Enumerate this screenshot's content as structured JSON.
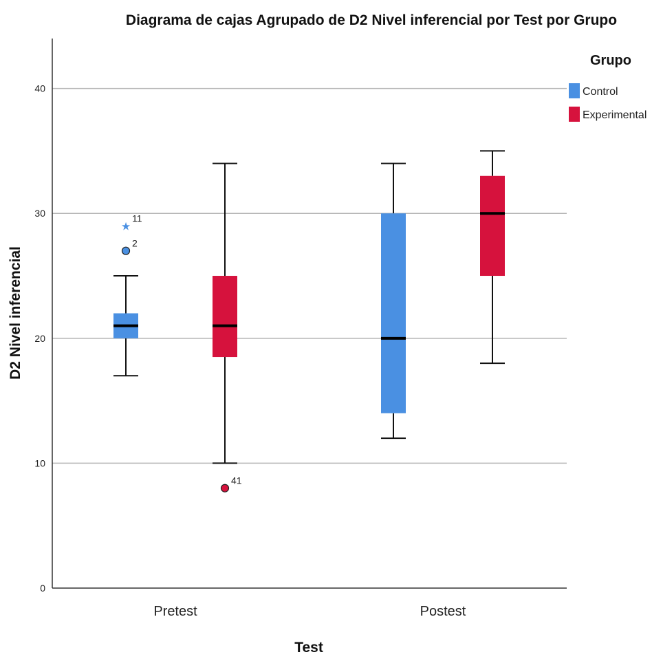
{
  "chart_data": {
    "type": "boxplot",
    "title": "Diagrama de cajas Agrupado de D2 Nivel inferencial por Test por Grupo",
    "xlabel": "Test",
    "ylabel": "D2 Nivel inferencial",
    "ylim": [
      0,
      44
    ],
    "yticks": [
      0,
      10,
      20,
      30,
      40
    ],
    "categories": [
      "Pretest",
      "Postest"
    ],
    "grid": true,
    "legend": {
      "title": "Grupo",
      "position": "top-right"
    },
    "series": [
      {
        "name": "Control",
        "color": "#4a90e2",
        "boxes": [
          {
            "category": "Pretest",
            "whisker_low": 17,
            "q1": 20,
            "median": 21,
            "q3": 22,
            "whisker_high": 25,
            "outliers": [
              {
                "value": 27,
                "label": "2",
                "marker": "circle"
              },
              {
                "value": 29,
                "label": "11",
                "marker": "star"
              }
            ]
          },
          {
            "category": "Postest",
            "whisker_low": 12,
            "q1": 14,
            "median": 20,
            "q3": 30,
            "whisker_high": 34,
            "outliers": []
          }
        ]
      },
      {
        "name": "Experimental",
        "color": "#d6123d",
        "boxes": [
          {
            "category": "Pretest",
            "whisker_low": 10,
            "q1": 18.5,
            "median": 21,
            "q3": 25,
            "whisker_high": 34,
            "outliers": [
              {
                "value": 8,
                "label": "41",
                "marker": "circle"
              }
            ]
          },
          {
            "category": "Postest",
            "whisker_low": 18,
            "q1": 25,
            "median": 30,
            "q3": 33,
            "whisker_high": 35,
            "outliers": []
          }
        ]
      }
    ]
  }
}
